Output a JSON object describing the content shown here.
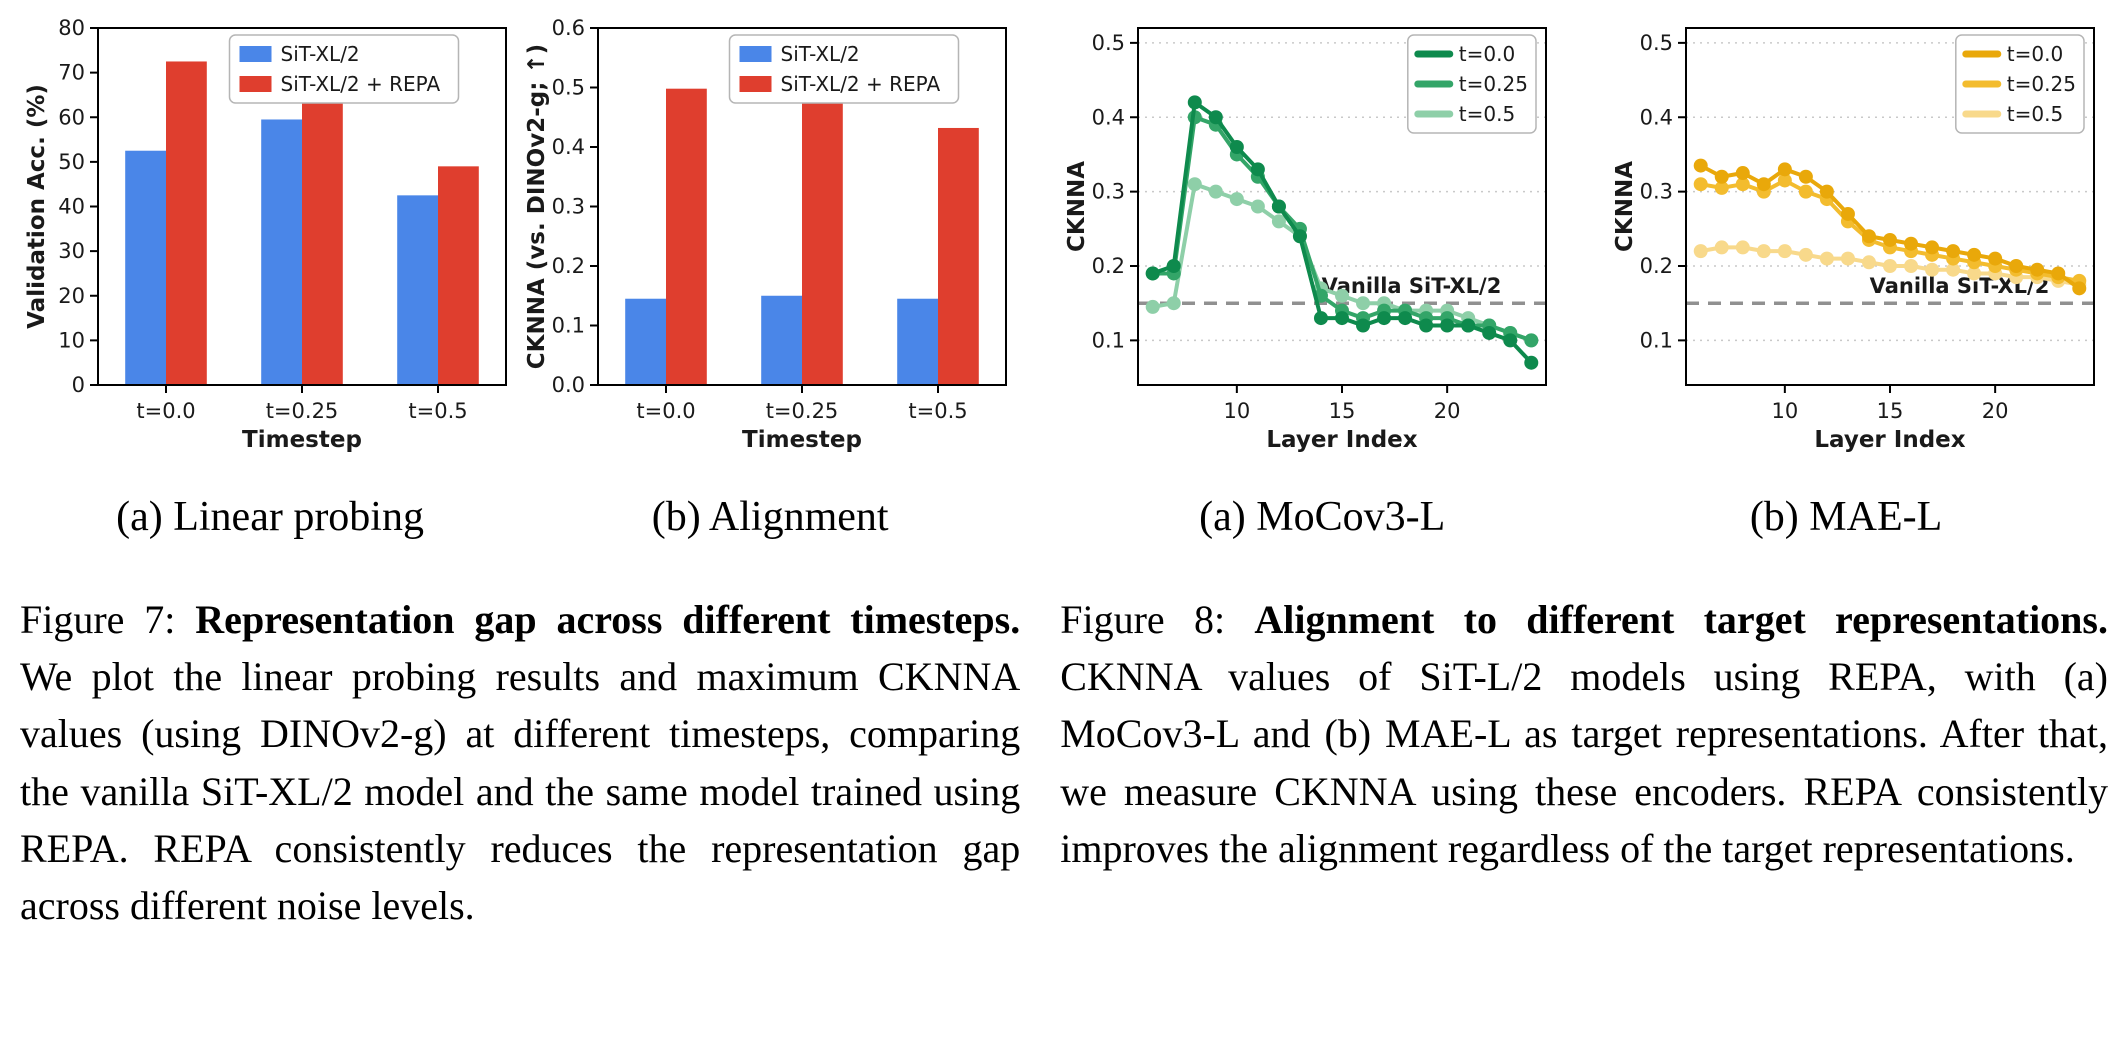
{
  "figures": [
    {
      "id": "figure7",
      "subcaptions": [
        "(a) Linear probing",
        "(b) Alignment"
      ],
      "caption": {
        "prefix": "Figure 7: ",
        "bold": "Representation gap across different timesteps.",
        "rest": " We plot the linear probing results and maximum CKNNA values (using DINOv2-g) at different timesteps, comparing the vanilla SiT-XL/2 model and the same model trained using REPA. REPA consistently reduces the representation gap across different noise levels."
      }
    },
    {
      "id": "figure8",
      "subcaptions": [
        "(a) MoCov3-L",
        "(b) MAE-L"
      ],
      "caption": {
        "prefix": "Figure 8: ",
        "bold": "Alignment to different target representations.",
        "rest": " CKNNA values of SiT-L/2 models using REPA, with (a) MoCov3-L and (b) MAE-L as target representations. After that, we measure CKNNA using these encoders. REPA consistently improves the alignment regardless of the target representations."
      }
    }
  ],
  "chart_data": [
    {
      "type": "bar",
      "categories": [
        "t=0.0",
        "t=0.25",
        "t=0.5"
      ],
      "series": [
        {
          "name": "SiT-XL/2",
          "color": "#4a86e8",
          "values": [
            52.5,
            59.5,
            42.5
          ]
        },
        {
          "name": "SiT-XL/2 + REPA",
          "color": "#df3e2e",
          "values": [
            72.5,
            67.0,
            49.0
          ]
        }
      ],
      "xlabel": "Timestep",
      "ylabel": "Validation Acc. (%)",
      "ylim": [
        0,
        80
      ],
      "yticks": [
        0,
        10,
        20,
        30,
        40,
        50,
        60,
        70,
        80
      ],
      "ytick_decimals": 0,
      "grid": false,
      "legend_position": "top-center"
    },
    {
      "type": "bar",
      "categories": [
        "t=0.0",
        "t=0.25",
        "t=0.5"
      ],
      "series": [
        {
          "name": "SiT-XL/2",
          "color": "#4a86e8",
          "values": [
            0.145,
            0.15,
            0.145
          ]
        },
        {
          "name": "SiT-XL/2 + REPA",
          "color": "#df3e2e",
          "values": [
            0.498,
            0.49,
            0.432
          ]
        }
      ],
      "xlabel": "Timestep",
      "ylabel": "CKNNA (vs. DINOv2-g; ↑)",
      "ylim": [
        0,
        0.6
      ],
      "yticks": [
        0.0,
        0.1,
        0.2,
        0.3,
        0.4,
        0.5,
        0.6
      ],
      "ytick_decimals": 1,
      "grid": false,
      "legend_position": "top-center"
    },
    {
      "type": "line",
      "x": [
        6,
        7,
        8,
        9,
        10,
        11,
        12,
        13,
        14,
        15,
        16,
        17,
        18,
        19,
        20,
        21,
        22,
        23,
        24
      ],
      "series": [
        {
          "name": "t=0.0",
          "color": "#0e8a4d",
          "values": [
            0.19,
            0.2,
            0.42,
            0.4,
            0.36,
            0.33,
            0.28,
            0.24,
            0.13,
            0.13,
            0.12,
            0.13,
            0.13,
            0.12,
            0.12,
            0.12,
            0.11,
            0.1,
            0.07
          ]
        },
        {
          "name": "t=0.25",
          "color": "#33a568",
          "values": [
            0.19,
            0.19,
            0.4,
            0.39,
            0.35,
            0.32,
            0.28,
            0.25,
            0.16,
            0.14,
            0.13,
            0.14,
            0.14,
            0.13,
            0.13,
            0.12,
            0.12,
            0.11,
            0.1
          ]
        },
        {
          "name": "t=0.5",
          "color": "#8ecfa8",
          "values": [
            0.145,
            0.15,
            0.31,
            0.3,
            0.29,
            0.28,
            0.26,
            0.24,
            0.17,
            0.16,
            0.15,
            0.15,
            0.14,
            0.14,
            0.14,
            0.13,
            0.12,
            0.11,
            0.1
          ]
        }
      ],
      "xlabel": "Layer Index",
      "ylabel": "CKNNA",
      "xlim": [
        5.3,
        24.7
      ],
      "xticks": [
        10,
        15,
        20
      ],
      "ylim": [
        0.04,
        0.52
      ],
      "yticks": [
        0.1,
        0.2,
        0.3,
        0.4,
        0.5
      ],
      "ytick_decimals": 1,
      "grid": true,
      "hline": {
        "y": 0.15,
        "label": "Vanilla SiT-XL/2",
        "color": "#909090"
      },
      "legend_position": "top-right"
    },
    {
      "type": "line",
      "x": [
        6,
        7,
        8,
        9,
        10,
        11,
        12,
        13,
        14,
        15,
        16,
        17,
        18,
        19,
        20,
        21,
        22,
        23,
        24
      ],
      "series": [
        {
          "name": "t=0.0",
          "color": "#e9a80a",
          "values": [
            0.335,
            0.32,
            0.325,
            0.31,
            0.33,
            0.32,
            0.3,
            0.27,
            0.24,
            0.235,
            0.23,
            0.225,
            0.22,
            0.215,
            0.21,
            0.2,
            0.195,
            0.19,
            0.17
          ]
        },
        {
          "name": "t=0.25",
          "color": "#f3bc2e",
          "values": [
            0.31,
            0.305,
            0.31,
            0.3,
            0.315,
            0.3,
            0.29,
            0.26,
            0.235,
            0.225,
            0.22,
            0.215,
            0.21,
            0.205,
            0.2,
            0.195,
            0.19,
            0.185,
            0.18
          ]
        },
        {
          "name": "t=0.5",
          "color": "#f8d98b",
          "values": [
            0.22,
            0.225,
            0.225,
            0.22,
            0.22,
            0.215,
            0.21,
            0.21,
            0.205,
            0.2,
            0.2,
            0.195,
            0.195,
            0.19,
            0.19,
            0.185,
            0.185,
            0.18,
            0.175
          ]
        }
      ],
      "xlabel": "Layer Index",
      "ylabel": "CKNNA",
      "xlim": [
        5.3,
        24.7
      ],
      "xticks": [
        10,
        15,
        20
      ],
      "ylim": [
        0.04,
        0.52
      ],
      "yticks": [
        0.1,
        0.2,
        0.3,
        0.4,
        0.5
      ],
      "ytick_decimals": 1,
      "grid": true,
      "hline": {
        "y": 0.15,
        "label": "Vanilla SiT-XL/2",
        "color": "#909090"
      },
      "legend_position": "top-right"
    }
  ]
}
